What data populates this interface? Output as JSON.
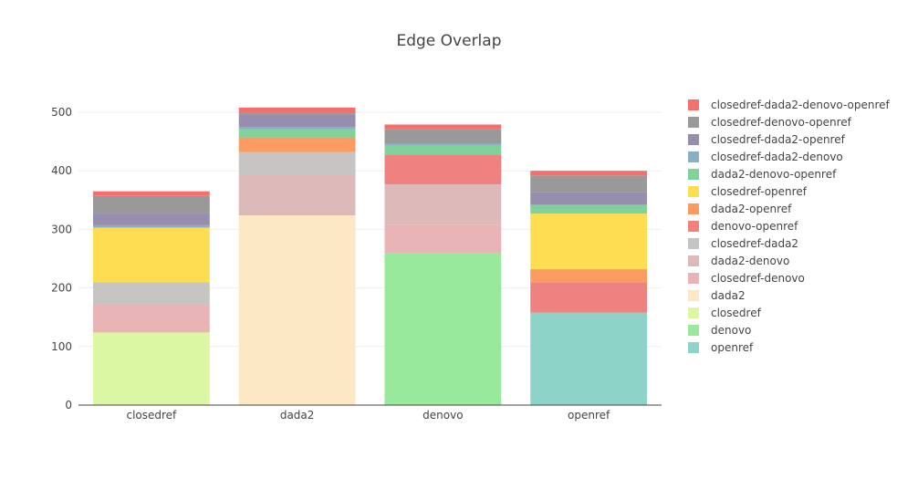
{
  "chart_data": {
    "type": "bar",
    "barmode": "stack",
    "title": "Edge Overlap",
    "xlabel": "",
    "ylabel": "",
    "categories": [
      "closedref",
      "dada2",
      "denovo",
      "openref"
    ],
    "ylim": [
      0,
      560
    ],
    "yticks": [
      0,
      100,
      200,
      300,
      400,
      500
    ],
    "grid": true,
    "legend_position": "right",
    "series": [
      {
        "name": "openref",
        "color": "#8dd3c7",
        "values": [
          0,
          0,
          0,
          158
        ]
      },
      {
        "name": "denovo",
        "color": "#98e99b",
        "values": [
          0,
          0,
          260,
          0
        ]
      },
      {
        "name": "closedref",
        "color": "#dcf7a4",
        "values": [
          124,
          0,
          0,
          0
        ]
      },
      {
        "name": "dada2",
        "color": "#fde8c5",
        "values": [
          0,
          324,
          0,
          0
        ]
      },
      {
        "name": "closedref-denovo",
        "color": "#e9b4b5",
        "values": [
          48,
          0,
          48,
          0
        ]
      },
      {
        "name": "dada2-denovo",
        "color": "#dbbab9",
        "values": [
          0,
          70,
          69,
          0
        ]
      },
      {
        "name": "closedref-dada2",
        "color": "#c6c5c4",
        "values": [
          38,
          38,
          0,
          0
        ]
      },
      {
        "name": "denovo-openref",
        "color": "#f08181",
        "values": [
          0,
          0,
          51,
          52
        ]
      },
      {
        "name": "dada2-openref",
        "color": "#fc9b61",
        "values": [
          0,
          25,
          0,
          22
        ]
      },
      {
        "name": "closedref-openref",
        "color": "#fdde52",
        "values": [
          93,
          0,
          0,
          95
        ]
      },
      {
        "name": "dada2-denovo-openref",
        "color": "#7fd29a",
        "values": [
          0,
          14,
          15,
          15
        ]
      },
      {
        "name": "closedref-dada2-denovo",
        "color": "#8aaec5",
        "values": [
          4,
          4,
          3,
          0
        ]
      },
      {
        "name": "closedref-dada2-openref",
        "color": "#978ead",
        "values": [
          20,
          21,
          0,
          22
        ]
      },
      {
        "name": "closedref-denovo-openref",
        "color": "#999999",
        "values": [
          30,
          4,
          25,
          28
        ]
      },
      {
        "name": "closedref-dada2-denovo-openref",
        "color": "#f56f6f",
        "values": [
          8,
          8,
          8,
          8
        ]
      }
    ]
  }
}
